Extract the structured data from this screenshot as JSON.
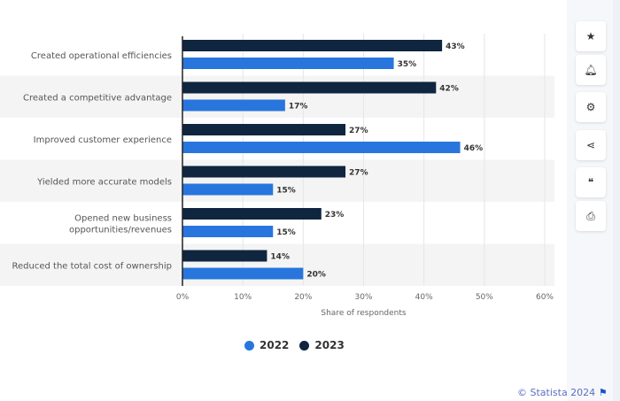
{
  "chart_data": {
    "type": "bar",
    "orientation": "horizontal",
    "categories": [
      "Created operational efficiencies",
      "Created a competitive advantage",
      "Improved customer experience",
      "Yielded more accurate models",
      "Opened new business opportunities/revenues",
      "Reduced the total cost of ownership"
    ],
    "category_lines": [
      [
        "Created operational efficiencies"
      ],
      [
        "Created a competitive advantage"
      ],
      [
        "Improved customer experience"
      ],
      [
        "Yielded more accurate models"
      ],
      [
        "Opened new business",
        "opportunities/revenues"
      ],
      [
        "Reduced the total cost of ownership"
      ]
    ],
    "series": [
      {
        "name": "2023",
        "color": "#0f2540",
        "values": [
          43,
          42,
          27,
          27,
          23,
          14
        ]
      },
      {
        "name": "2022",
        "color": "#2876dd",
        "values": [
          35,
          17,
          46,
          15,
          15,
          20
        ]
      }
    ],
    "xlabel": "Share of respondents",
    "xticks": [
      "0%",
      "10%",
      "20%",
      "30%",
      "40%",
      "50%",
      "60%"
    ],
    "xlim": [
      0,
      60
    ],
    "grid": true,
    "legend_placement": "bottom"
  },
  "legend": [
    {
      "label": "2022",
      "color": "#2876dd"
    },
    {
      "label": "2023",
      "color": "#0f2540"
    }
  ],
  "credit": "© Statista 2024",
  "sidebar_icons": [
    "star-icon",
    "bell-icon",
    "gear-icon",
    "share-icon",
    "quote-icon",
    "print-icon"
  ]
}
